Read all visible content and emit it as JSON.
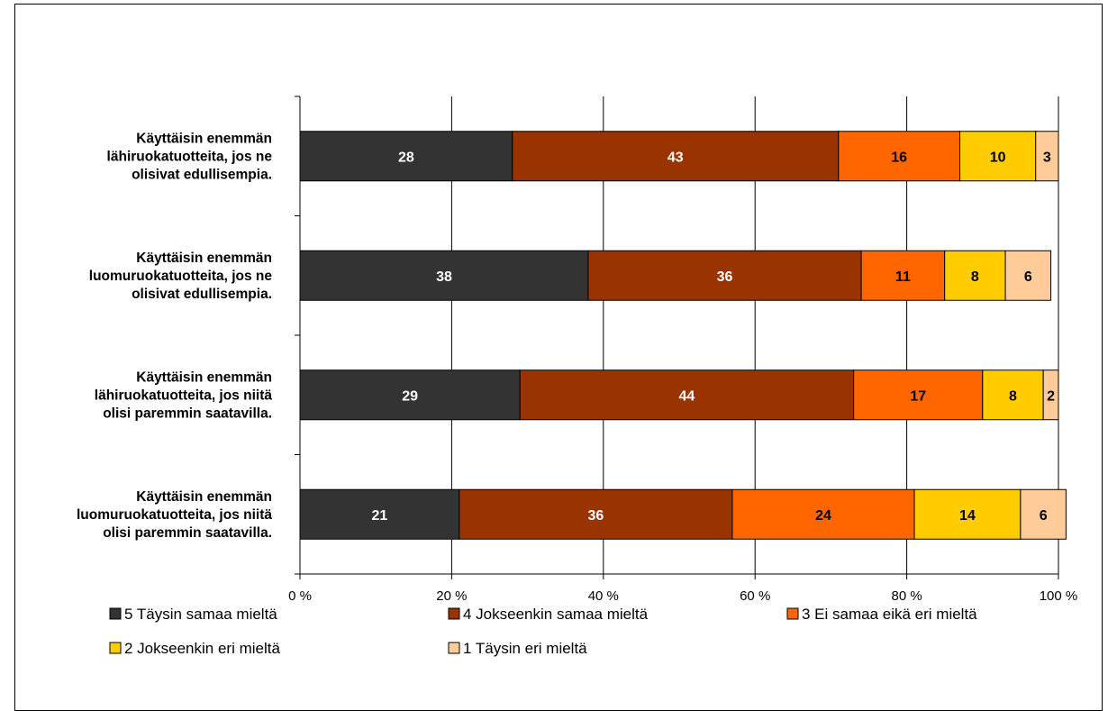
{
  "chart_data": {
    "type": "bar",
    "orientation": "horizontal",
    "stacked": true,
    "percent_stacked": true,
    "categories": [
      "Käyttäisin enemmän lähiruokatuotteita, jos ne olisivat edullisempia.",
      "Käyttäisin enemmän luomuruokatuotteita, jos ne olisivat edullisempia.",
      "Käyttäisin enemmän lähiruokatuotteita, jos niitä olisi paremmin saatavilla.",
      "Käyttäisin enemmän luomuruokatuotteita, jos niitä olisi paremmin saatavilla."
    ],
    "category_lines": [
      [
        "Käyttäisin enemmän",
        "lähiruokatuotteita, jos ne",
        "olisivat edullisempia."
      ],
      [
        "Käyttäisin enemmän",
        "luomuruokatuotteita, jos ne",
        "olisivat edullisempia."
      ],
      [
        "Käyttäisin enemmän",
        "lähiruokatuotteita, jos niitä",
        "olisi paremmin saatavilla."
      ],
      [
        "Käyttäisin enemmän",
        "luomuruokatuotteita, jos niitä",
        "olisi paremmin saatavilla."
      ]
    ],
    "series": [
      {
        "name": "5 Täysin samaa mieltä",
        "color": "#333333",
        "label_color": "#ffffff",
        "values": [
          28,
          38,
          29,
          21
        ]
      },
      {
        "name": "4 Jokseenkin samaa mieltä",
        "color": "#993300",
        "label_color": "#ffffff",
        "values": [
          43,
          36,
          44,
          36
        ]
      },
      {
        "name": "3 Ei samaa eikä eri mieltä",
        "color": "#ff6600",
        "label_color": "#000000",
        "values": [
          16,
          11,
          17,
          24
        ]
      },
      {
        "name": "2 Jokseenkin eri mieltä",
        "color": "#ffcc00",
        "label_color": "#000000",
        "values": [
          10,
          8,
          8,
          14
        ]
      },
      {
        "name": "1 Täysin eri mieltä",
        "color": "#ffcc99",
        "label_color": "#000000",
        "values": [
          3,
          6,
          2,
          6
        ]
      }
    ],
    "xlim": [
      0,
      100
    ],
    "x_ticks": [
      "0 %",
      "20 %",
      "40 %",
      "60 %",
      "80 %",
      "100 %"
    ],
    "grid": true,
    "legend_position": "bottom",
    "title": "",
    "xlabel": "",
    "ylabel": ""
  }
}
